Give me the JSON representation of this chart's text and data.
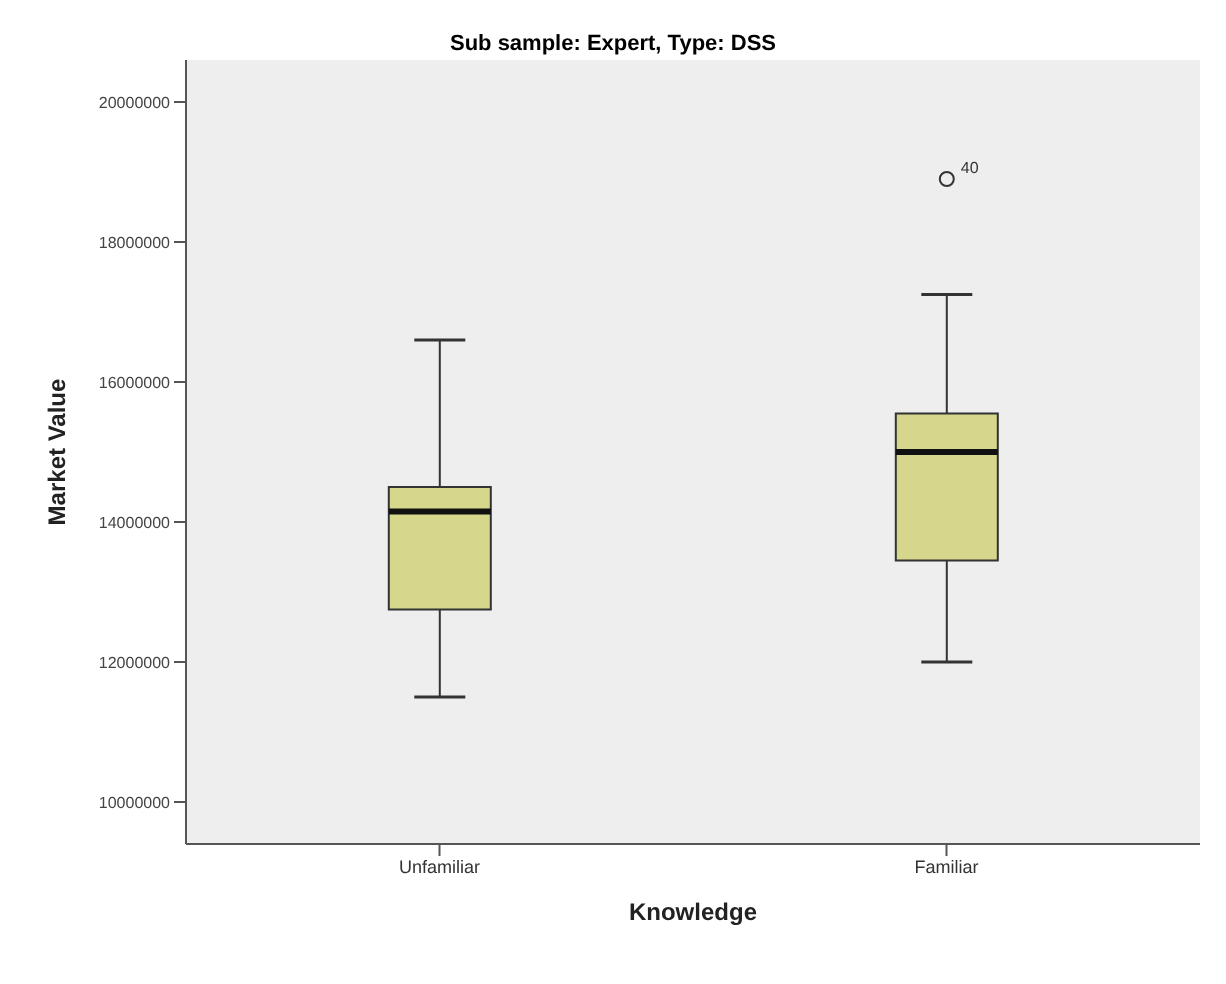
{
  "chart_data": {
    "type": "box",
    "title": "Sub sample: Expert, Type: DSS",
    "xlabel": "Knowledge",
    "ylabel": "Market Value",
    "categories": [
      "Unfamiliar",
      "Familiar"
    ],
    "boxes": [
      {
        "low": 11500000,
        "q1": 12750000,
        "median": 14150000,
        "q3": 14500000,
        "high": 16600000
      },
      {
        "low": 12000000,
        "q1": 13450000,
        "median": 15000000,
        "q3": 15550000,
        "high": 17250000,
        "outliers": [
          18900000
        ]
      }
    ],
    "color": "#d6d68c",
    "ylim": [
      9400000,
      20600000
    ],
    "yticks": [
      10000000,
      12000000,
      14000000,
      16000000,
      18000000,
      20000000
    ],
    "annotations": [
      "40"
    ],
    "grid": false,
    "legend": false
  }
}
